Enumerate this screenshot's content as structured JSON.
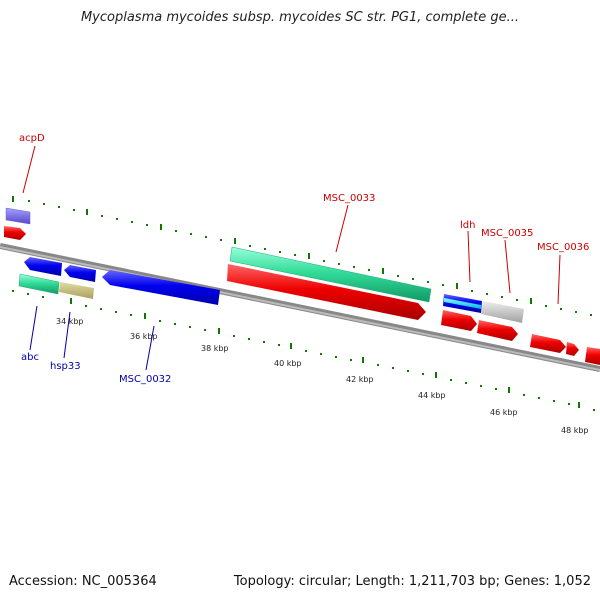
{
  "title": "Mycoplasma mycoides subsp. mycoides SC str. PG1, complete ge...",
  "footer": {
    "accession": "Accession: NC_005364",
    "topology": "Topology: circular; Length: 1,211,703 bp; Genes: 1,052"
  },
  "ticks": [
    "34 kbp",
    "36 kbp",
    "38 kbp",
    "40 kbp",
    "42 kbp",
    "44 kbp",
    "46 kbp",
    "48 kbp"
  ],
  "labels": {
    "acpD": "acpD",
    "abc": "abc",
    "hsp33": "hsp33",
    "msc0032": "MSC_0032",
    "msc0033": "MSC_0033",
    "ldh": "ldh",
    "msc0035": "MSC_0035",
    "msc0036": "MSC_0036"
  },
  "colors": {
    "forward": "#e50000",
    "reverse": "#0000dd",
    "label_forward": "#cc0000",
    "label_reverse": "#0000aa",
    "rna_green": "#33dd99",
    "tick": "#117700",
    "backbone": "#888888"
  }
}
